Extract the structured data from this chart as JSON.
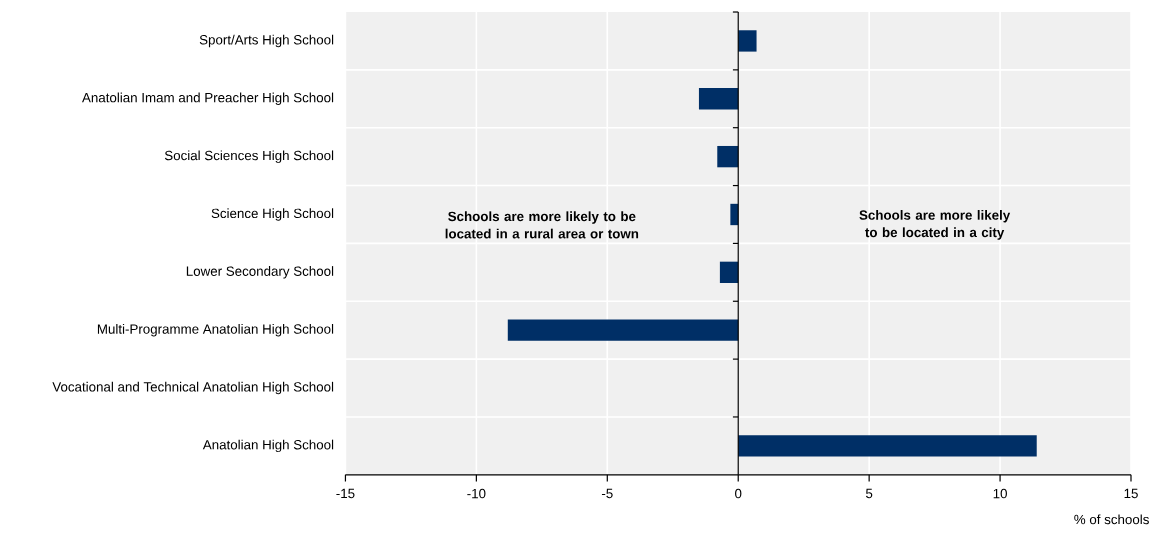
{
  "chart_data": {
    "type": "bar",
    "orientation": "horizontal",
    "categories": [
      "Sport/Arts High School",
      "Anatolian Imam and Preacher High School",
      "Social Sciences High School",
      "Science High School",
      "Lower Secondary School",
      "Multi-Programme Anatolian High School",
      "Vocational and Technical Anatolian High School",
      "Anatolian High School"
    ],
    "values": [
      0.7,
      -1.5,
      -0.8,
      -0.3,
      -0.7,
      -8.8,
      0,
      11.4
    ],
    "color": "#002f66",
    "xlim": [
      -15,
      15
    ],
    "xticks": [
      -15,
      -10,
      -5,
      0,
      5,
      10,
      15
    ],
    "xlabel": "% of schools",
    "annotations": [
      "Schools are more likely to be located in a rural area or town",
      "Schools are more likely to be located in a city"
    ],
    "grid": true
  }
}
